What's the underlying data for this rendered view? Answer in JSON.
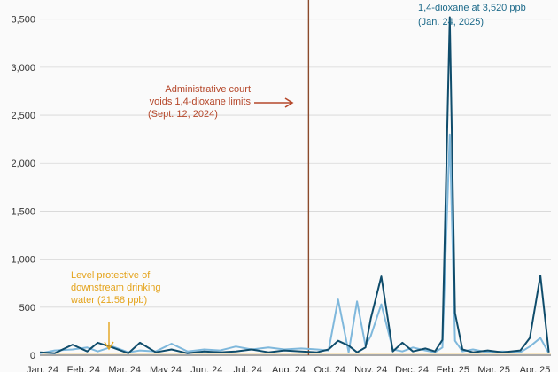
{
  "chart_data": {
    "type": "line",
    "ylim": [
      0,
      3700
    ],
    "y_ticks": [
      0,
      500,
      1000,
      1500,
      2000,
      2500,
      3000,
      3500
    ],
    "y_tick_labels": [
      "0",
      "500",
      "1,000",
      "1,500",
      "2,000",
      "2,500",
      "3,000",
      "3,500"
    ],
    "x_ticks": [
      "Jan. 24",
      "Feb. 24",
      "Mar. 24",
      "May 24",
      "Jun. 24",
      "Jul. 24",
      "Aug. 24",
      "Oct. 24",
      "Nov. 24",
      "Dec. 24",
      "Feb. 25",
      "Mar. 25",
      "Apr. 25"
    ],
    "grid": "horizontal",
    "colors": {
      "series_dark": "#0f4c6b",
      "series_light": "#7fb8dc",
      "court_line": "#8b4a2b",
      "court_text": "#b5472a",
      "threshold": "#e4a31b",
      "peak_text": "#1d6a8a"
    },
    "series": [
      {
        "x": [
          "2024-01-01",
          "2024-01-15",
          "2024-02-01",
          "2024-02-15",
          "2024-02-25",
          "2024-03-10",
          "2024-03-25",
          "2024-04-05",
          "2024-04-20",
          "2024-05-05",
          "2024-05-20",
          "2024-06-05",
          "2024-06-20",
          "2024-07-05",
          "2024-07-20",
          "2024-08-05",
          "2024-08-20",
          "2024-09-05",
          "2024-09-20",
          "2024-10-01",
          "2024-10-10",
          "2024-10-20",
          "2024-10-28",
          "2024-11-05",
          "2024-11-10",
          "2024-11-20",
          "2024-12-01",
          "2024-12-10",
          "2024-12-20",
          "2025-01-01",
          "2025-01-10",
          "2025-01-17",
          "2025-01-24",
          "2025-01-29",
          "2025-02-05",
          "2025-02-15",
          "2025-03-01",
          "2025-03-15",
          "2025-04-01",
          "2025-04-10",
          "2025-04-20",
          "2025-04-28"
        ],
        "values": [
          30,
          20,
          110,
          40,
          130,
          80,
          20,
          130,
          30,
          60,
          20,
          40,
          30,
          40,
          60,
          30,
          50,
          40,
          30,
          60,
          150,
          100,
          30,
          80,
          380,
          820,
          40,
          130,
          40,
          70,
          40,
          160,
          3520,
          440,
          60,
          30,
          50,
          30,
          50,
          180,
          830,
          30
        ]
      },
      {
        "x": [
          "2024-01-01",
          "2024-01-15",
          "2024-02-01",
          "2024-02-15",
          "2024-02-25",
          "2024-03-10",
          "2024-03-25",
          "2024-04-05",
          "2024-04-20",
          "2024-05-05",
          "2024-05-20",
          "2024-06-05",
          "2024-06-20",
          "2024-07-05",
          "2024-07-20",
          "2024-08-05",
          "2024-08-20",
          "2024-09-05",
          "2024-09-20",
          "2024-10-01",
          "2024-10-10",
          "2024-10-20",
          "2024-10-28",
          "2024-11-05",
          "2024-11-10",
          "2024-11-20",
          "2024-12-01",
          "2024-12-10",
          "2024-12-20",
          "2025-01-01",
          "2025-01-10",
          "2025-01-17",
          "2025-01-24",
          "2025-01-29",
          "2025-02-05",
          "2025-02-15",
          "2025-03-01",
          "2025-03-15",
          "2025-04-01",
          "2025-04-10",
          "2025-04-20",
          "2025-04-28"
        ],
        "values": [
          20,
          50,
          60,
          80,
          40,
          90,
          30,
          50,
          40,
          120,
          40,
          60,
          50,
          90,
          60,
          80,
          60,
          70,
          60,
          50,
          580,
          30,
          560,
          100,
          200,
          530,
          60,
          40,
          80,
          50,
          30,
          80,
          2300,
          150,
          40,
          60,
          30,
          40,
          30,
          90,
          180,
          20
        ]
      }
    ],
    "threshold": {
      "value": 21.58
    },
    "event": {
      "date": "2024-09-12"
    },
    "peak": {
      "date": "2025-01-24",
      "value": 3520
    },
    "annotations": {
      "court": [
        "Administrative court",
        "voids 1,4-dioxane limits",
        "(Sept. 12, 2024)"
      ],
      "peak": [
        "1,4-dioxane at 3,520 ppb",
        "(Jan. 24, 2025)"
      ],
      "threshold": [
        "Level protective of",
        "downstream drinking",
        "water (21.58 ppb)"
      ]
    }
  }
}
